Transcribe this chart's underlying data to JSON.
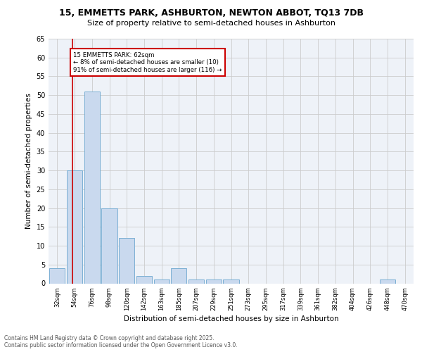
{
  "title_line1": "15, EMMETTS PARK, ASHBURTON, NEWTON ABBOT, TQ13 7DB",
  "title_line2": "Size of property relative to semi-detached houses in Ashburton",
  "xlabel": "Distribution of semi-detached houses by size in Ashburton",
  "ylabel": "Number of semi-detached properties",
  "bin_labels": [
    "32sqm",
    "54sqm",
    "76sqm",
    "98sqm",
    "120sqm",
    "142sqm",
    "163sqm",
    "185sqm",
    "207sqm",
    "229sqm",
    "251sqm",
    "273sqm",
    "295sqm",
    "317sqm",
    "339sqm",
    "361sqm",
    "382sqm",
    "404sqm",
    "426sqm",
    "448sqm",
    "470sqm"
  ],
  "bar_values": [
    4,
    30,
    51,
    20,
    12,
    2,
    1,
    4,
    1,
    1,
    1,
    0,
    0,
    0,
    0,
    0,
    0,
    0,
    0,
    1,
    0
  ],
  "bar_color": "#c9d9ee",
  "bar_edge_color": "#7bafd4",
  "marker_label": "15 EMMETTS PARK: 62sqm",
  "marker_smaller_pct": "8%",
  "marker_smaller_n": 10,
  "marker_larger_pct": "91%",
  "marker_larger_n": 116,
  "marker_line_color": "#cc0000",
  "annotation_box_color": "#cc0000",
  "ylim": [
    0,
    65
  ],
  "yticks": [
    0,
    5,
    10,
    15,
    20,
    25,
    30,
    35,
    40,
    45,
    50,
    55,
    60,
    65
  ],
  "grid_color": "#cccccc",
  "bg_color": "#eef2f8",
  "footer_line1": "Contains HM Land Registry data © Crown copyright and database right 2025.",
  "footer_line2": "Contains public sector information licensed under the Open Government Licence v3.0."
}
